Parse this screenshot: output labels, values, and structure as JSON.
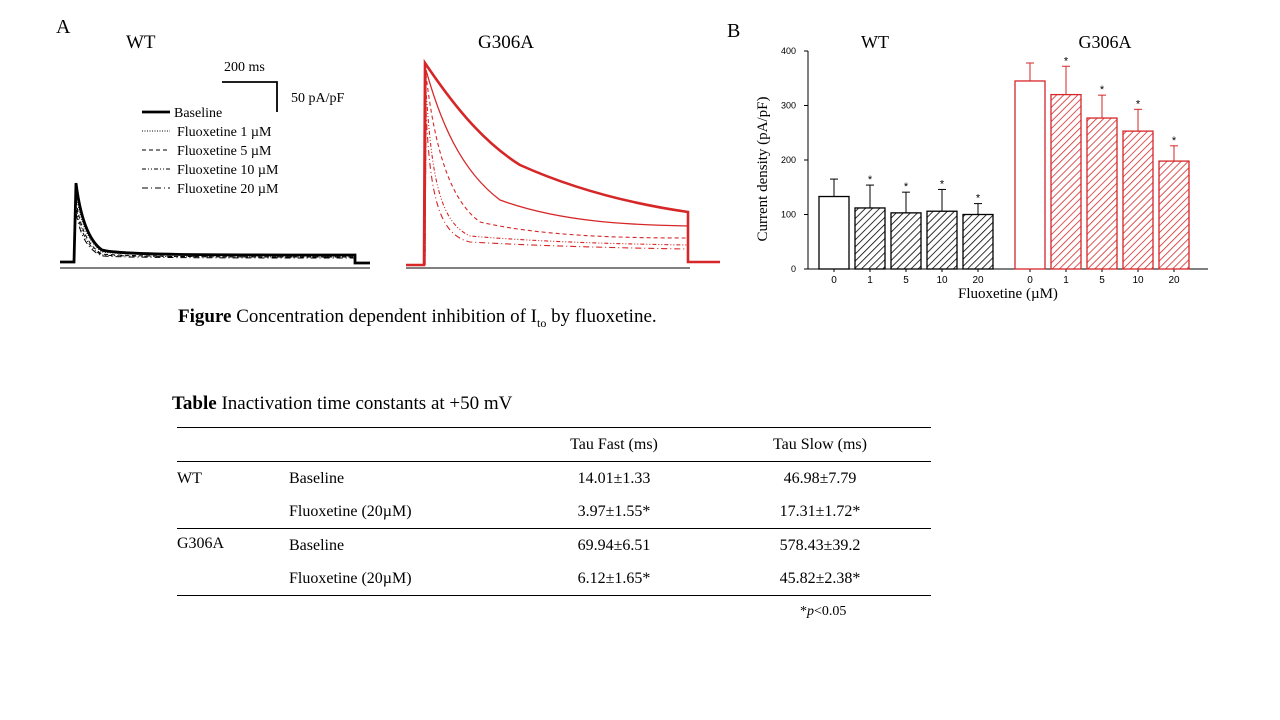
{
  "figure": {
    "panel_a_label": "A",
    "panel_b_label": "B",
    "traces": {
      "wt_title": "WT",
      "g306a_title": "G306A",
      "time_scale": "200 ms",
      "current_scale": "50 pA/pF",
      "legend": [
        "Baseline",
        "Fluoxetine 1 µM",
        "Fluoxetine 5 µM",
        "Fluoxetine 10 µM",
        "Fluoxetine 20 µM"
      ]
    },
    "caption_bold": "Figure",
    "caption_text": "Concentration dependent inhibition of I",
    "caption_sub": "to",
    "caption_end": "by fluoxetine.",
    "colors": {
      "wt": "#000000",
      "g306a": "#d62728"
    }
  },
  "chart_data": {
    "type": "bar",
    "groups": [
      "WT",
      "G306A"
    ],
    "categories": [
      "0",
      "1",
      "5",
      "10",
      "20"
    ],
    "series": [
      {
        "name": "WT",
        "values": [
          133,
          112,
          103,
          106,
          100
        ],
        "errors": [
          32,
          42,
          38,
          40,
          20
        ],
        "significant": [
          false,
          true,
          true,
          true,
          true
        ]
      },
      {
        "name": "G306A",
        "values": [
          345,
          320,
          277,
          253,
          198
        ],
        "errors": [
          33,
          52,
          42,
          40,
          28
        ],
        "significant": [
          false,
          true,
          true,
          true,
          true
        ]
      }
    ],
    "xlabel": "Fluoxetine (µM)",
    "ylabel": "Current density (pA/pF)",
    "ylim": [
      0,
      400
    ],
    "yticks": [
      "0",
      "100",
      "200",
      "300",
      "400"
    ],
    "significance_mark": "*"
  },
  "table": {
    "title_bold": "Table",
    "title_text": "Inactivation time constants at +50 mV",
    "headers": [
      "",
      "",
      "Tau Fast (ms)",
      "Tau Slow (ms)"
    ],
    "groups": [
      {
        "genotype": "WT",
        "rows": [
          {
            "condition": "Baseline",
            "tau_fast": "14.01±1.33",
            "tau_slow": "46.98±7.79"
          },
          {
            "condition": "Fluoxetine (20µM)",
            "tau_fast": "3.97±1.55*",
            "tau_slow": "17.31±1.72*"
          }
        ]
      },
      {
        "genotype": "G306A",
        "rows": [
          {
            "condition": "Baseline",
            "tau_fast": "69.94±6.51",
            "tau_slow": "578.43±39.2"
          },
          {
            "condition": "Fluoxetine (20µM)",
            "tau_fast": "6.12±1.65*",
            "tau_slow": "45.82±2.38*"
          }
        ]
      }
    ],
    "footnote_star": "*",
    "footnote_p": "p",
    "footnote_rest": "<0.05"
  }
}
